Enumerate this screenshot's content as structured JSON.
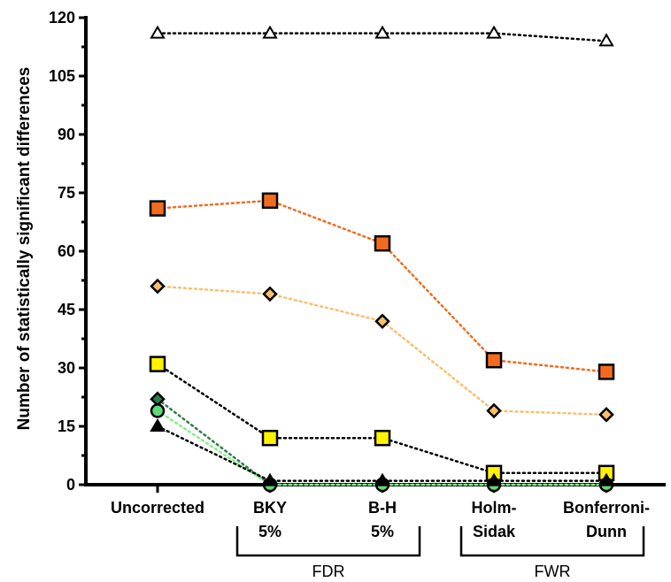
{
  "chart_data": {
    "type": "line",
    "ylabel": "Number of statistically significant differences",
    "xlabel": "",
    "ylim": [
      0,
      120
    ],
    "yticks": [
      0,
      15,
      30,
      45,
      60,
      75,
      90,
      105,
      120
    ],
    "grid": false,
    "categories": [
      [
        "Uncorrected"
      ],
      [
        "BKY",
        "5%"
      ],
      [
        "B-H",
        "5%"
      ],
      [
        "Holm-",
        "Sidak"
      ],
      [
        "Bonferroni-",
        "Dunn"
      ]
    ],
    "groups": [
      {
        "label": "FDR",
        "span": [
          1,
          2
        ]
      },
      {
        "label": "FWR",
        "span": [
          3,
          4
        ]
      }
    ],
    "series": [
      {
        "marker": "triangle-open",
        "fill": "#ffffff",
        "line_color": "#000000",
        "values": [
          116,
          116,
          116,
          116,
          114
        ]
      },
      {
        "marker": "square",
        "fill": "#f26b1d",
        "line_color": "#f26b1d",
        "values": [
          71,
          73,
          62,
          32,
          29
        ]
      },
      {
        "marker": "diamond",
        "fill": "#fbbf6b",
        "line_color": "#fbbf6b",
        "values": [
          51,
          49,
          42,
          19,
          18
        ]
      },
      {
        "marker": "square",
        "fill": "#fff200",
        "line_color": "#000000",
        "values": [
          31,
          12,
          12,
          3,
          3
        ]
      },
      {
        "marker": "diamond",
        "fill": "#2e7d4a",
        "line_color": "#2e7d4a",
        "values": [
          22,
          0,
          0,
          0,
          0
        ]
      },
      {
        "marker": "circle",
        "fill": "#5fd97a",
        "line_color": "#86ee86",
        "values": [
          19,
          0,
          0,
          0,
          0
        ]
      },
      {
        "marker": "triangle",
        "fill": "#000000",
        "line_color": "#000000",
        "values": [
          15,
          1,
          1,
          1,
          1
        ]
      }
    ]
  }
}
